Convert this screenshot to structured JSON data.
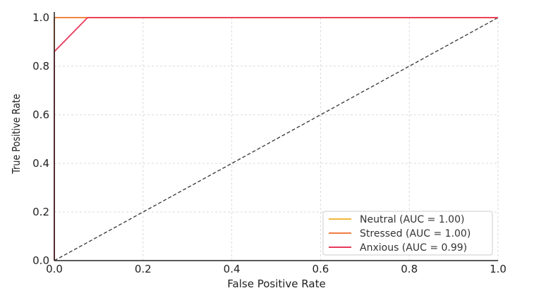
{
  "chart_data": {
    "type": "line",
    "title": "",
    "xlabel": "False Positive Rate",
    "ylabel": "True Positive Rate",
    "xlim": [
      0.0,
      1.0
    ],
    "ylim": [
      0.0,
      1.0
    ],
    "xticks": [
      "0.0",
      "0.2",
      "0.4",
      "0.6",
      "0.8",
      "1.0"
    ],
    "yticks": [
      "0.0",
      "0.2",
      "0.4",
      "0.6",
      "0.8",
      "1.0"
    ],
    "grid": true,
    "legend_position": "bottom-right",
    "series": [
      {
        "name": "Neutral (AUC = 1.00)",
        "color": "#f5b73b",
        "x": [
          0.0,
          0.0,
          1.0
        ],
        "y": [
          0.0,
          1.0,
          1.0
        ]
      },
      {
        "name": "Stressed (AUC = 1.00)",
        "color": "#f07c3f",
        "x": [
          0.0,
          0.0,
          1.0
        ],
        "y": [
          0.0,
          1.0,
          1.0
        ]
      },
      {
        "name": "Anxious (AUC = 0.99)",
        "color": "#e8395a",
        "x": [
          0.0,
          0.0,
          0.075,
          1.0
        ],
        "y": [
          0.0,
          0.86,
          1.0,
          1.0
        ]
      }
    ],
    "diagonal": {
      "color": "#333333",
      "style": "dashed",
      "x": [
        0.0,
        1.0
      ],
      "y": [
        0.0,
        1.0
      ]
    }
  }
}
